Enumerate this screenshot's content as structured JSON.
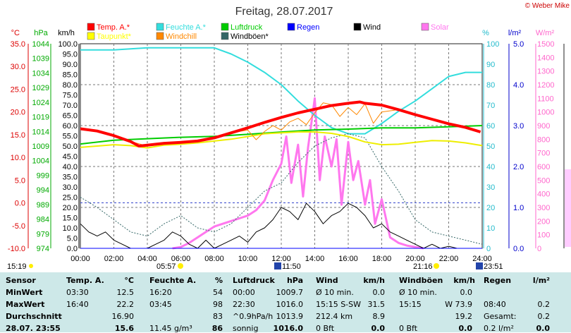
{
  "header": {
    "title": "Freitag, 28.07.2017",
    "copyright": "© Weber Mike"
  },
  "legend": [
    {
      "label": "Temp. A.*",
      "color": "#ff0000"
    },
    {
      "label": "Feuchte A.*",
      "color": "#33dddd"
    },
    {
      "label": "Luftdruck",
      "color": "#00cc00"
    },
    {
      "label": "Regen",
      "color": "#0000ff"
    },
    {
      "label": "Wind",
      "color": "#000000"
    },
    {
      "label": "Solar",
      "color": "#ff77ee"
    },
    {
      "label": "Taupunkt*",
      "color": "#ffff00"
    },
    {
      "label": "Windchill",
      "color": "#ff8800"
    },
    {
      "label": "Windböen*",
      "color": "#336666"
    }
  ],
  "axis_units": {
    "temp": "°C",
    "press": "hPa",
    "wind": "km/h",
    "hum": "%",
    "rain": "l/m²",
    "solar": "W/m²"
  },
  "chart_data": {
    "type": "line",
    "title": "Freitag, 28.07.2017",
    "x_unit": "hours",
    "xlim": [
      0,
      24
    ],
    "x_ticks": [
      "00:00",
      "02:00",
      "04:00",
      "06:00",
      "08:00",
      "10:00",
      "12:00",
      "14:00",
      "16:00",
      "18:00",
      "20:00",
      "22:00",
      "24:00"
    ],
    "axes": {
      "temp": {
        "label": "°C",
        "range": [
          -10,
          35
        ],
        "ticks": [
          "35.0",
          "30.0",
          "25.0",
          "20.0",
          "15.0",
          "10.0",
          "5.0",
          "0.0",
          "-5.0",
          "-10.0"
        ]
      },
      "press": {
        "label": "hPa",
        "range": [
          974,
          1044
        ],
        "ticks": [
          "1044",
          "1039",
          "1034",
          "1029",
          "1024",
          "1019",
          "1014",
          "1009",
          "1004",
          "999",
          "994",
          "989",
          "984",
          "979",
          "974"
        ]
      },
      "wind": {
        "label": "km/h",
        "range": [
          0,
          100
        ],
        "ticks": [
          "100.0",
          "95.0",
          "90.0",
          "85.0",
          "80.0",
          "75.0",
          "70.0",
          "65.0",
          "60.0",
          "55.0",
          "50.0",
          "45.0",
          "40.0",
          "35.0",
          "30.0",
          "25.0",
          "20.0",
          "15.0",
          "10.0",
          "5.0",
          "0.0"
        ]
      },
      "hum": {
        "label": "%",
        "range": [
          0,
          100
        ],
        "ticks": [
          "100",
          "90",
          "80",
          "70",
          "60",
          "50",
          "40",
          "30",
          "20",
          "10",
          "0"
        ]
      },
      "rain": {
        "label": "l/m²",
        "range": [
          0,
          5
        ],
        "ticks": [
          "5.0",
          "4.0",
          "3.0",
          "2.0",
          "1.0",
          "0.0"
        ]
      },
      "solar": {
        "label": "W/m²",
        "range": [
          0,
          1500
        ],
        "ticks": [
          "1500",
          "1400",
          "1300",
          "1200",
          "1100",
          "1000",
          "900",
          "800",
          "700",
          "600",
          "500",
          "400",
          "300",
          "200",
          "100",
          "0"
        ]
      }
    },
    "series": [
      {
        "name": "Temp. A.*",
        "axis": "temp",
        "x": [
          0,
          1,
          2,
          3,
          3.5,
          4,
          5,
          6,
          7,
          8,
          9,
          10,
          11,
          12,
          13,
          14,
          15,
          16,
          16.7,
          17,
          18,
          19,
          20,
          21,
          22,
          23,
          23.9
        ],
        "y": [
          16.3,
          15.8,
          14.8,
          13.5,
          12.5,
          12.7,
          13.1,
          13.3,
          13.6,
          14.3,
          15.4,
          16.5,
          17.7,
          18.8,
          19.8,
          20.6,
          21.4,
          21.9,
          22.2,
          21.9,
          21.5,
          20.5,
          19.4,
          18.4,
          17.4,
          16.6,
          15.6
        ]
      },
      {
        "name": "Feuchte A.*",
        "axis": "hum",
        "x": [
          0,
          2,
          4,
          6,
          8,
          9,
          10,
          11,
          12,
          13,
          14,
          15,
          16,
          17,
          18,
          19,
          20,
          21,
          22,
          23,
          24
        ],
        "y": [
          97,
          97,
          98,
          98,
          98,
          95,
          91,
          86,
          80,
          72,
          65,
          59,
          56,
          56,
          61,
          67,
          72,
          78,
          84,
          86,
          86
        ]
      },
      {
        "name": "Luftdruck",
        "axis": "press",
        "x": [
          0,
          2,
          4,
          6,
          8,
          10,
          12,
          14,
          16,
          18,
          20,
          22,
          24
        ],
        "y": [
          1009.7,
          1011.0,
          1011.5,
          1012.0,
          1012.3,
          1013.0,
          1013.8,
          1014.5,
          1014.8,
          1015.2,
          1015.2,
          1015.6,
          1016.0
        ]
      },
      {
        "name": "Taupunkt*",
        "axis": "temp",
        "x": [
          0,
          1,
          2,
          3,
          4,
          5,
          6,
          7,
          8,
          9,
          10,
          11,
          12,
          13,
          14,
          15,
          16,
          17,
          18,
          19,
          20,
          21,
          22,
          23,
          24
        ],
        "y": [
          12.2,
          12.5,
          12.8,
          12.6,
          12.1,
          12.7,
          12.9,
          13.2,
          13.6,
          14.0,
          14.6,
          15.2,
          15.4,
          15.6,
          15.6,
          15.3,
          14.6,
          13.4,
          12.8,
          12.9,
          13.3,
          13.7,
          13.6,
          13.2,
          12.6
        ]
      },
      {
        "name": "Windchill",
        "axis": "temp",
        "x": [
          0,
          1,
          2,
          3,
          4,
          5,
          6,
          7,
          8,
          9,
          10,
          10.5,
          11,
          11.5,
          12,
          12.5,
          13,
          13.5,
          14,
          14.5,
          15,
          15.5,
          16,
          16.5,
          17,
          17.5,
          18,
          19,
          20,
          21,
          22,
          23,
          23.9
        ],
        "y": [
          16.3,
          15.8,
          14.8,
          13.5,
          12.5,
          13.1,
          13.3,
          13.6,
          14.3,
          15.4,
          16.0,
          13.9,
          15.7,
          17.0,
          16.0,
          17.8,
          18.6,
          17.2,
          19.8,
          22.0,
          21.6,
          19.0,
          21.0,
          19.4,
          21.8,
          17.5,
          20.0,
          20.5,
          19.4,
          18.4,
          17.4,
          16.6,
          15.6
        ]
      },
      {
        "name": "Wind",
        "axis": "wind",
        "x": [
          0,
          0.5,
          1,
          1.5,
          2,
          2.5,
          3,
          3.5,
          4,
          4.5,
          5,
          5.5,
          6,
          6.5,
          7,
          7.5,
          8,
          8.5,
          9,
          9.5,
          10,
          10.5,
          11,
          11.5,
          12,
          12.5,
          13,
          13.5,
          14,
          14.5,
          15,
          15.5,
          16,
          16.5,
          17,
          17.5,
          18,
          18.5,
          19,
          19.5,
          20,
          20.5,
          21,
          21.5,
          22,
          22.5,
          23,
          23.5,
          24
        ],
        "y": [
          12,
          8,
          6,
          8,
          4,
          2,
          0,
          0,
          0,
          2,
          4,
          8,
          6,
          2,
          0,
          4,
          0,
          2,
          4,
          6,
          3,
          8,
          10,
          14,
          20,
          18,
          14,
          22,
          18,
          12,
          16,
          18,
          22,
          20,
          16,
          10,
          12,
          8,
          6,
          4,
          2,
          0,
          2,
          0,
          1,
          0,
          0,
          0,
          0
        ]
      },
      {
        "name": "Windböen*",
        "axis": "wind",
        "x": [
          0,
          1,
          2,
          3,
          4,
          5,
          6,
          7,
          8,
          9,
          10,
          11,
          12,
          13,
          14,
          15,
          16,
          17,
          18,
          19,
          20,
          21,
          22,
          23,
          24
        ],
        "y": [
          25,
          20,
          14,
          8,
          6,
          12,
          16,
          10,
          8,
          12,
          20,
          28,
          32,
          42,
          50,
          54,
          56,
          54,
          40,
          28,
          14,
          8,
          6,
          4,
          2
        ]
      },
      {
        "name": "Solar",
        "axis": "solar",
        "x": [
          5.5,
          6,
          6.5,
          7,
          7.5,
          8,
          8.5,
          9,
          9.5,
          10,
          10.5,
          11,
          11.5,
          12,
          12.3,
          12.6,
          13,
          13.3,
          13.6,
          14,
          14.3,
          14.6,
          15,
          15.3,
          15.6,
          16,
          16.3,
          16.6,
          17,
          17.3,
          17.6,
          18,
          18.5,
          19,
          19.5,
          20,
          20.5
        ],
        "y": [
          0,
          10,
          40,
          80,
          120,
          160,
          180,
          200,
          220,
          240,
          280,
          350,
          500,
          620,
          820,
          480,
          760,
          380,
          740,
          1100,
          500,
          820,
          600,
          800,
          320,
          780,
          500,
          640,
          320,
          500,
          180,
          360,
          80,
          40,
          20,
          10,
          0
        ]
      },
      {
        "name": "Regen",
        "axis": "rain",
        "x": [
          0,
          24
        ],
        "y": [
          0.0,
          0.0
        ]
      }
    ]
  },
  "time_markers": {
    "left": "15:19",
    "sunrise": "05:57",
    "noon": "11:50",
    "sunset": "21:16",
    "right": "23:51"
  },
  "stats": {
    "headers": [
      "Sensor",
      "Temp. A.",
      "°C",
      "Feuchte A.",
      "%",
      "Luftdruck",
      "hPa",
      "Wind",
      "km/h",
      "Windböen",
      "km/h",
      "Regen",
      "l/m²"
    ],
    "rows": [
      {
        "label": "MinWert",
        "cells": [
          "03:30",
          "12.5",
          "16:20",
          "54",
          "00:00",
          "1009.7",
          "Ø 10 min.",
          "0.0",
          "Ø 10 min.",
          "0.0",
          "",
          ""
        ]
      },
      {
        "label": "MaxWert",
        "cells": [
          "16:40",
          "22.2",
          "03:45",
          "98",
          "22:30",
          "1016.0",
          "15:15  S-SW",
          "31.5",
          "15:15",
          "W 73.9",
          "08:40",
          "0.2"
        ]
      },
      {
        "label": "Durchschnitt",
        "cells": [
          "",
          "16.90",
          "",
          "83",
          "^0.9hPa/h",
          "1013.9",
          "212.4 km",
          "8.9",
          "",
          "19.2",
          "Gesamt:",
          "0.2"
        ]
      },
      {
        "label": "28.07. 23:55",
        "cells": [
          "",
          "15.6",
          "11.45 g/m³",
          "86",
          "sonnig",
          "1016.0",
          "0 Bft",
          "0.0",
          "0 Bft",
          "0.0",
          "0.2 l/m²",
          "0.0"
        ]
      }
    ]
  }
}
